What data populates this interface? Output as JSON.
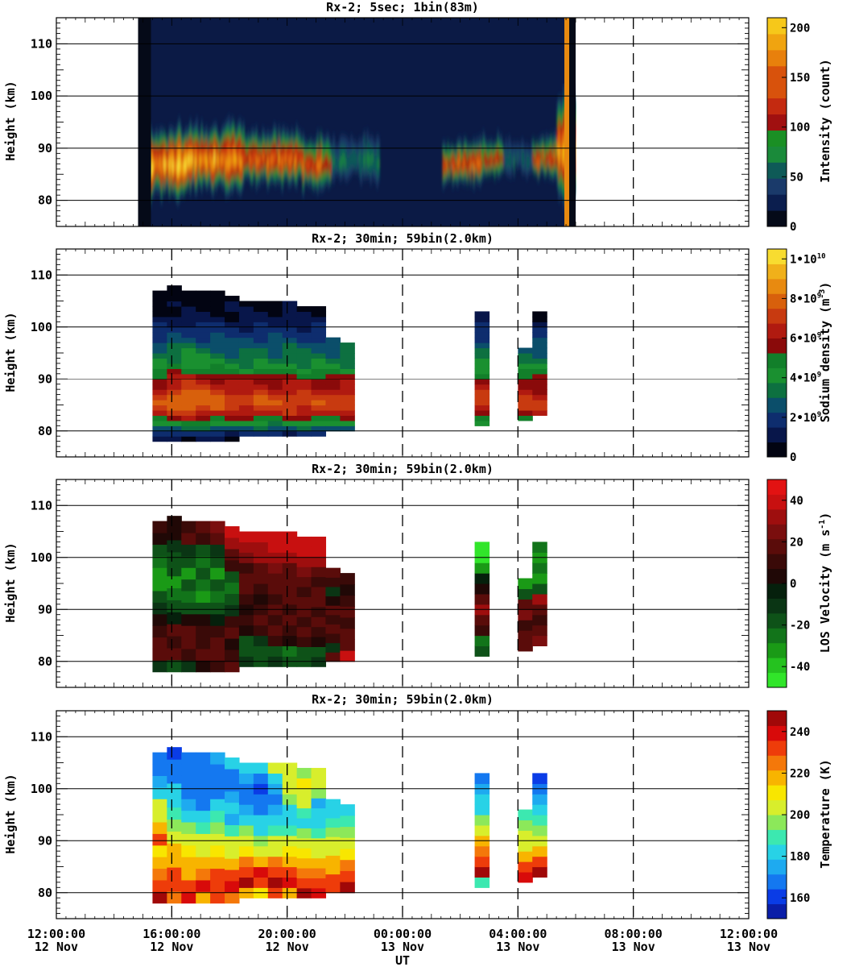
{
  "figure": {
    "x_axis_label": "UT",
    "x_ticks": [
      {
        "time": "12:00:00",
        "date": "12 Nov"
      },
      {
        "time": "16:00:00",
        "date": "12 Nov"
      },
      {
        "time": "20:00:00",
        "date": "12 Nov"
      },
      {
        "time": "00:00:00",
        "date": "13 Nov"
      },
      {
        "time": "04:00:00",
        "date": "13 Nov"
      },
      {
        "time": "08:00:00",
        "date": "13 Nov"
      },
      {
        "time": "12:00:00",
        "date": "13 Nov"
      }
    ]
  },
  "chart_data": [
    {
      "type": "heatmap",
      "title": "Rx-2;  5sec; 1bin(83m)",
      "xlabel": "UT",
      "ylabel": "Height (km)",
      "xlim": [
        "2012-11-12T12:00:00",
        "2012-11-13T12:00:00"
      ],
      "ylim": [
        75,
        115
      ],
      "y_ticks": [
        80,
        90,
        100,
        110
      ],
      "grid_lines_y": [
        80,
        90,
        100,
        110
      ],
      "dashed_x": [
        "2012-11-13T08:00:00"
      ],
      "data_time_range": [
        "2012-11-12T14:50:00",
        "2012-11-13T06:00:00"
      ],
      "colorbar": {
        "label": "Intensity (count)",
        "ticks": [
          0,
          50,
          100,
          150,
          200
        ],
        "range": [
          0,
          210
        ],
        "scale": "stepped"
      },
      "layer": {
        "center_km": 87,
        "top_km": 98,
        "bottom_km": 80
      },
      "columns": [
        {
          "t": "15:20",
          "peak": 190,
          "center": 87,
          "half": 6
        },
        {
          "t": "16:00",
          "peak": 200,
          "center": 87,
          "half": 6
        },
        {
          "t": "17:00",
          "peak": 190,
          "center": 88,
          "half": 6
        },
        {
          "t": "18:00",
          "peak": 170,
          "center": 88,
          "half": 6
        },
        {
          "t": "19:00",
          "peak": 160,
          "center": 88,
          "half": 5
        },
        {
          "t": "20:00",
          "peak": 160,
          "center": 88,
          "half": 5
        },
        {
          "t": "21:00",
          "peak": 150,
          "center": 87,
          "half": 5
        },
        {
          "t": "22:00",
          "peak": 70,
          "center": 88,
          "half": 6
        },
        {
          "t": "02:30",
          "peak": 150,
          "center": 87,
          "half": 4
        },
        {
          "t": "03:00",
          "peak": 140,
          "center": 88,
          "half": 4
        },
        {
          "t": "04:00",
          "peak": 60,
          "center": 88,
          "half": 5
        },
        {
          "t": "05:00",
          "peak": 140,
          "center": 88,
          "half": 4
        },
        {
          "t": "05:40",
          "peak": 180,
          "center": 90,
          "half": 10
        }
      ]
    },
    {
      "type": "heatmap",
      "title": "Rx-2; 30min; 59bin(2.0km)",
      "xlabel": "UT",
      "ylabel": "Height (km)",
      "xlim": [
        "2012-11-12T12:00:00",
        "2012-11-13T12:00:00"
      ],
      "ylim": [
        75,
        115
      ],
      "y_ticks": [
        80,
        90,
        100,
        110
      ],
      "colorbar": {
        "label": "Sodium density (m-3)",
        "ticks": [
          "0",
          "2•10^9",
          "4•10^9",
          "6•10^9",
          "8•10^9",
          "1•10^10"
        ],
        "range": [
          0,
          10000000000
        ]
      },
      "profile_km": [
        78,
        80,
        82,
        84,
        86,
        88,
        90,
        92,
        94,
        96,
        98,
        100,
        102,
        104,
        106,
        108
      ],
      "profile_value": [
        300000000.0,
        2000000000.0,
        4500000000.0,
        6500000000.0,
        7000000000.0,
        6000000000.0,
        5500000000.0,
        4000000000.0,
        3200000000.0,
        2800000000.0,
        2000000000.0,
        1500000000.0,
        800000000.0,
        500000000.0,
        300000000.0,
        200000000.0
      ],
      "columns": [
        {
          "start": "15:20",
          "bottom": 78,
          "top": 107,
          "scale": 1.0
        },
        {
          "start": "15:50",
          "bottom": 78,
          "top": 108,
          "scale": 1.1
        },
        {
          "start": "16:20",
          "bottom": 78,
          "top": 107,
          "scale": 1.15
        },
        {
          "start": "16:50",
          "bottom": 78,
          "top": 107,
          "scale": 1.1
        },
        {
          "start": "17:20",
          "bottom": 78,
          "top": 107,
          "scale": 1.05
        },
        {
          "start": "17:50",
          "bottom": 78,
          "top": 106,
          "scale": 1.0
        },
        {
          "start": "18:20",
          "bottom": 79,
          "top": 105,
          "scale": 1.0
        },
        {
          "start": "18:50",
          "bottom": 79,
          "top": 105,
          "scale": 1.05
        },
        {
          "start": "19:20",
          "bottom": 79,
          "top": 105,
          "scale": 1.0
        },
        {
          "start": "19:50",
          "bottom": 79,
          "top": 105,
          "scale": 1.05
        },
        {
          "start": "20:20",
          "bottom": 79,
          "top": 104,
          "scale": 1.0
        },
        {
          "start": "20:50",
          "bottom": 79,
          "top": 104,
          "scale": 1.0
        },
        {
          "start": "21:20",
          "bottom": 80,
          "top": 98,
          "scale": 1.0
        },
        {
          "start": "21:50",
          "bottom": 80,
          "top": 97,
          "scale": 1.0
        },
        {
          "start": "02:30",
          "bottom": 81,
          "top": 103,
          "scale": 1.0
        },
        {
          "start": "04:00",
          "bottom": 82,
          "top": 96,
          "scale": 0.95
        },
        {
          "start": "04:30",
          "bottom": 83,
          "top": 103,
          "scale": 0.95
        }
      ]
    },
    {
      "type": "heatmap",
      "title": "Rx-2; 30min; 59bin(2.0km)",
      "xlabel": "UT",
      "ylabel": "Height (km)",
      "xlim": [
        "2012-11-12T12:00:00",
        "2012-11-13T12:00:00"
      ],
      "ylim": [
        75,
        115
      ],
      "y_ticks": [
        80,
        90,
        100,
        110
      ],
      "colorbar": {
        "label": "LOS Velocity (m s-1)",
        "ticks": [
          -40,
          -20,
          0,
          20,
          40
        ],
        "range": [
          -50,
          50
        ]
      },
      "columns": [
        {
          "start": "15:20",
          "values": [
            -10,
            20,
            15,
            10,
            5,
            -10,
            -20,
            -30,
            -35,
            -25,
            -15,
            5,
            10
          ]
        },
        {
          "start": "15:50",
          "values": [
            -20,
            15,
            10,
            15,
            -5,
            -15,
            -25,
            -30,
            -20,
            -15,
            -10,
            0,
            5
          ]
        },
        {
          "start": "16:20",
          "values": [
            -10,
            10,
            20,
            15,
            5,
            -15,
            -25,
            -20,
            -30,
            -20,
            -10,
            15,
            10
          ]
        },
        {
          "start": "16:50",
          "values": [
            5,
            20,
            10,
            10,
            0,
            -20,
            -30,
            -25,
            -20,
            -25,
            -15,
            10,
            15
          ]
        },
        {
          "start": "17:20",
          "values": [
            10,
            15,
            20,
            10,
            -5,
            -15,
            -25,
            -20,
            -30,
            -20,
            -10,
            20,
            25
          ]
        },
        {
          "start": "17:50",
          "values": [
            15,
            10,
            5,
            20,
            10,
            -10,
            -20,
            -25,
            -15,
            10,
            15,
            30,
            40
          ]
        },
        {
          "start": "18:20",
          "values": [
            -10,
            -15,
            -20,
            5,
            10,
            5,
            10,
            15,
            20,
            10,
            25,
            35,
            40
          ]
        },
        {
          "start": "18:50",
          "values": [
            -15,
            -20,
            -10,
            10,
            15,
            10,
            5,
            10,
            15,
            20,
            30,
            35,
            40
          ]
        },
        {
          "start": "19:20",
          "values": [
            -10,
            -15,
            10,
            15,
            10,
            20,
            10,
            15,
            20,
            25,
            30,
            40,
            40
          ]
        },
        {
          "start": "19:50",
          "values": [
            -20,
            -25,
            5,
            10,
            15,
            10,
            15,
            20,
            15,
            20,
            35,
            40,
            40
          ]
        },
        {
          "start": "20:20",
          "values": [
            -15,
            -20,
            10,
            15,
            10,
            15,
            20,
            10,
            15,
            25,
            30,
            40,
            40
          ]
        },
        {
          "start": "20:50",
          "values": [
            -10,
            -15,
            5,
            10,
            15,
            10,
            15,
            20,
            10,
            20,
            30,
            40,
            40
          ]
        },
        {
          "start": "21:20",
          "values": [
            15,
            -10,
            10,
            15,
            10,
            15,
            5,
            -10,
            10,
            15
          ]
        },
        {
          "start": "21:50",
          "values": [
            40,
            15,
            20,
            10,
            15,
            10,
            5,
            10
          ]
        },
        {
          "start": "02:30",
          "values": [
            -15,
            -25,
            10,
            20,
            30,
            15,
            5,
            -5,
            -35,
            -45,
            -50
          ]
        },
        {
          "start": "04:00",
          "values": [
            20,
            15,
            10,
            25,
            15,
            -20,
            -30
          ]
        },
        {
          "start": "04:30",
          "values": [
            25,
            15,
            10,
            20,
            30,
            -20,
            -30,
            -25,
            -30,
            -25
          ]
        }
      ]
    },
    {
      "type": "heatmap",
      "title": "Rx-2; 30min; 59bin(2.0km)",
      "xlabel": "UT",
      "ylabel": "Height (km)",
      "xlim": [
        "2012-11-12T12:00:00",
        "2012-11-13T12:00:00"
      ],
      "ylim": [
        75,
        115
      ],
      "y_ticks": [
        80,
        90,
        100,
        110
      ],
      "colorbar": {
        "label": "Temperature (K)",
        "ticks": [
          160,
          180,
          200,
          220,
          240
        ],
        "range": [
          150,
          250
        ]
      },
      "columns": [
        {
          "start": "15:20",
          "values": [
            245,
            230,
            225,
            215,
            210,
            230,
            220,
            205,
            200,
            180,
            175,
            170,
            165
          ]
        },
        {
          "start": "15:50",
          "values": [
            225,
            235,
            230,
            220,
            215,
            205,
            195,
            190,
            185,
            180,
            170,
            165,
            160
          ]
        },
        {
          "start": "16:20",
          "values": [
            240,
            230,
            220,
            215,
            210,
            200,
            195,
            185,
            175,
            170,
            165,
            165,
            170
          ]
        },
        {
          "start": "16:50",
          "values": [
            220,
            240,
            225,
            220,
            205,
            200,
            190,
            185,
            170,
            165,
            170,
            165,
            170
          ]
        },
        {
          "start": "17:20",
          "values": [
            230,
            235,
            230,
            215,
            210,
            205,
            195,
            190,
            180,
            170,
            165,
            170,
            175
          ]
        },
        {
          "start": "17:50",
          "values": [
            225,
            240,
            235,
            220,
            205,
            200,
            190,
            175,
            185,
            175,
            165,
            170,
            180
          ]
        },
        {
          "start": "18:20",
          "values": [
            220,
            245,
            230,
            225,
            210,
            200,
            195,
            180,
            175,
            165,
            170,
            175,
            180
          ]
        },
        {
          "start": "18:50",
          "values": [
            210,
            230,
            240,
            220,
            200,
            195,
            185,
            180,
            170,
            165,
            160,
            170,
            185
          ]
        },
        {
          "start": "19:20",
          "values": [
            235,
            245,
            230,
            225,
            205,
            200,
            190,
            185,
            175,
            170,
            175,
            185,
            200
          ]
        },
        {
          "start": "19:50",
          "values": [
            220,
            240,
            235,
            220,
            210,
            205,
            190,
            185,
            180,
            195,
            200,
            205,
            200
          ]
        },
        {
          "start": "20:20",
          "values": [
            245,
            230,
            225,
            215,
            210,
            200,
            195,
            180,
            190,
            200,
            205,
            210,
            195
          ]
        },
        {
          "start": "20:50",
          "values": [
            240,
            235,
            225,
            220,
            205,
            200,
            190,
            185,
            180,
            175,
            195,
            200,
            205
          ]
        },
        {
          "start": "21:20",
          "values": [
            230,
            235,
            220,
            215,
            205,
            200,
            195,
            190,
            185,
            180
          ]
        },
        {
          "start": "21:50",
          "values": [
            245,
            230,
            225,
            210,
            205,
            195,
            190,
            185
          ]
        },
        {
          "start": "02:30",
          "values": [
            190,
            245,
            235,
            225,
            220,
            205,
            195,
            185,
            180,
            175,
            165
          ]
        },
        {
          "start": "04:00",
          "values": [
            240,
            230,
            220,
            205,
            200,
            195,
            190
          ]
        },
        {
          "start": "04:30",
          "values": [
            245,
            230,
            215,
            205,
            195,
            190,
            185,
            175,
            170,
            160
          ]
        }
      ]
    }
  ]
}
